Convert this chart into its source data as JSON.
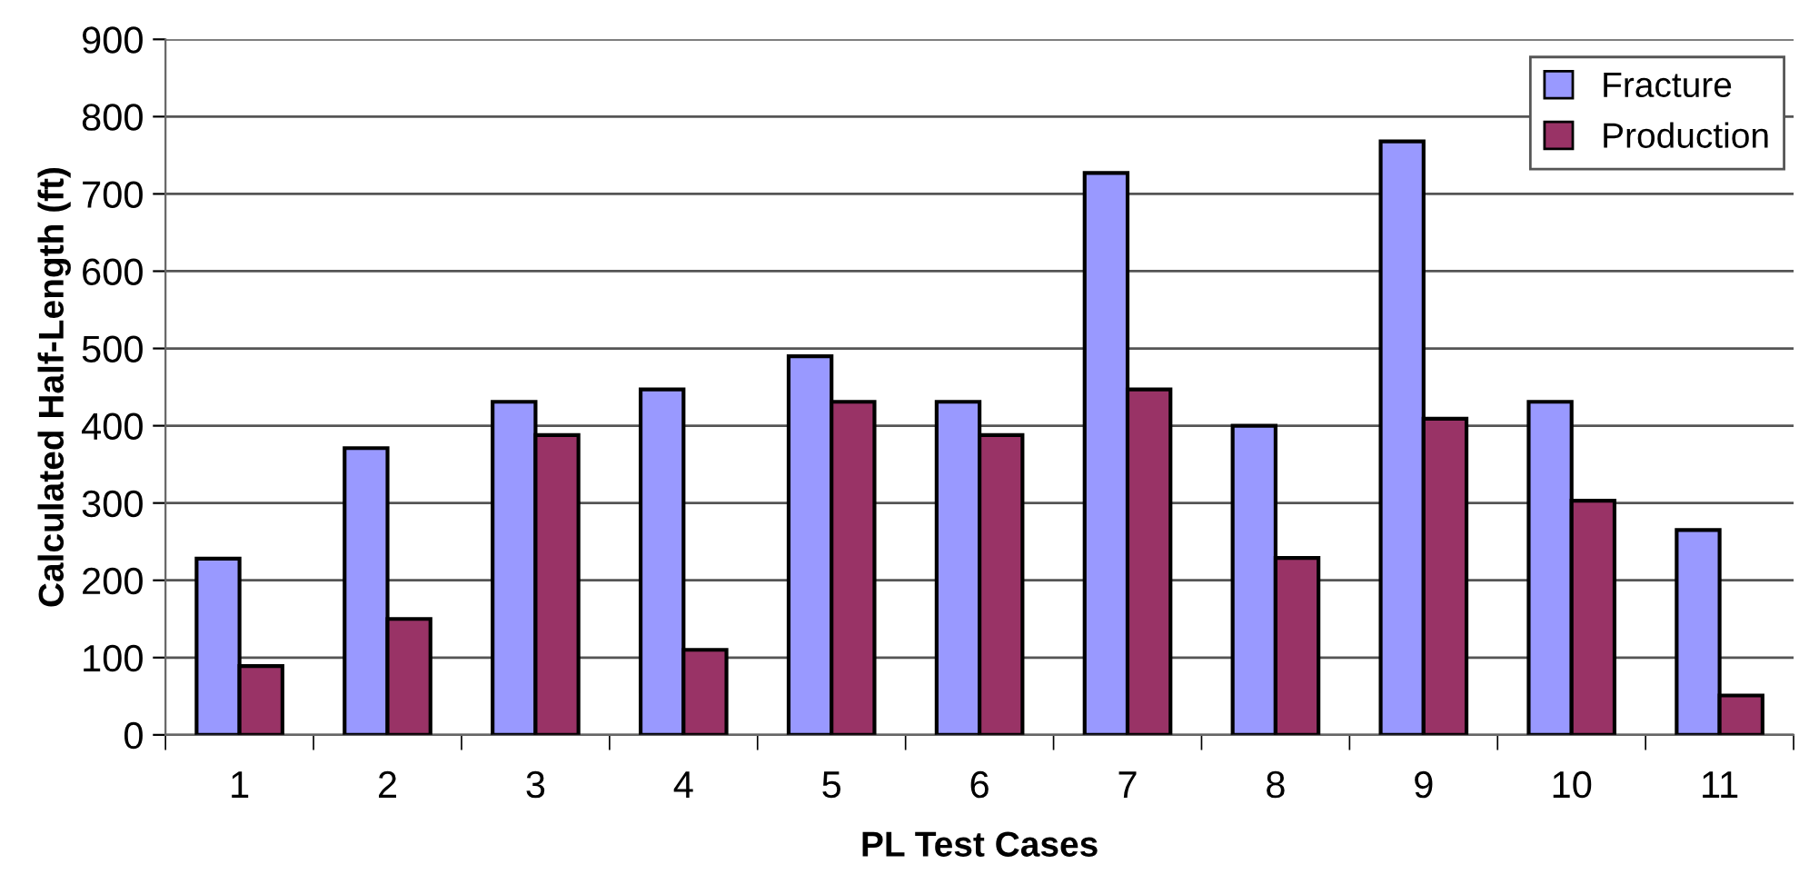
{
  "chart_data": {
    "type": "bar",
    "xlabel": "PL Test Cases",
    "ylabel": "Calculated Half-Length (ft)",
    "categories": [
      "1",
      "2",
      "3",
      "4",
      "5",
      "6",
      "7",
      "8",
      "9",
      "10",
      "11"
    ],
    "series": [
      {
        "name": "Fracture",
        "color": "#9999ff",
        "values": [
          228,
          371,
          431,
          447,
          490,
          431,
          727,
          400,
          768,
          431,
          265
        ]
      },
      {
        "name": "Production",
        "color": "#993366",
        "values": [
          89,
          150,
          388,
          110,
          431,
          388,
          447,
          229,
          409,
          303,
          51
        ]
      }
    ],
    "ylim": [
      0,
      900
    ],
    "yticks": [
      0,
      100,
      200,
      300,
      400,
      500,
      600,
      700,
      800,
      900
    ],
    "grid": "y",
    "legend": "top right"
  }
}
